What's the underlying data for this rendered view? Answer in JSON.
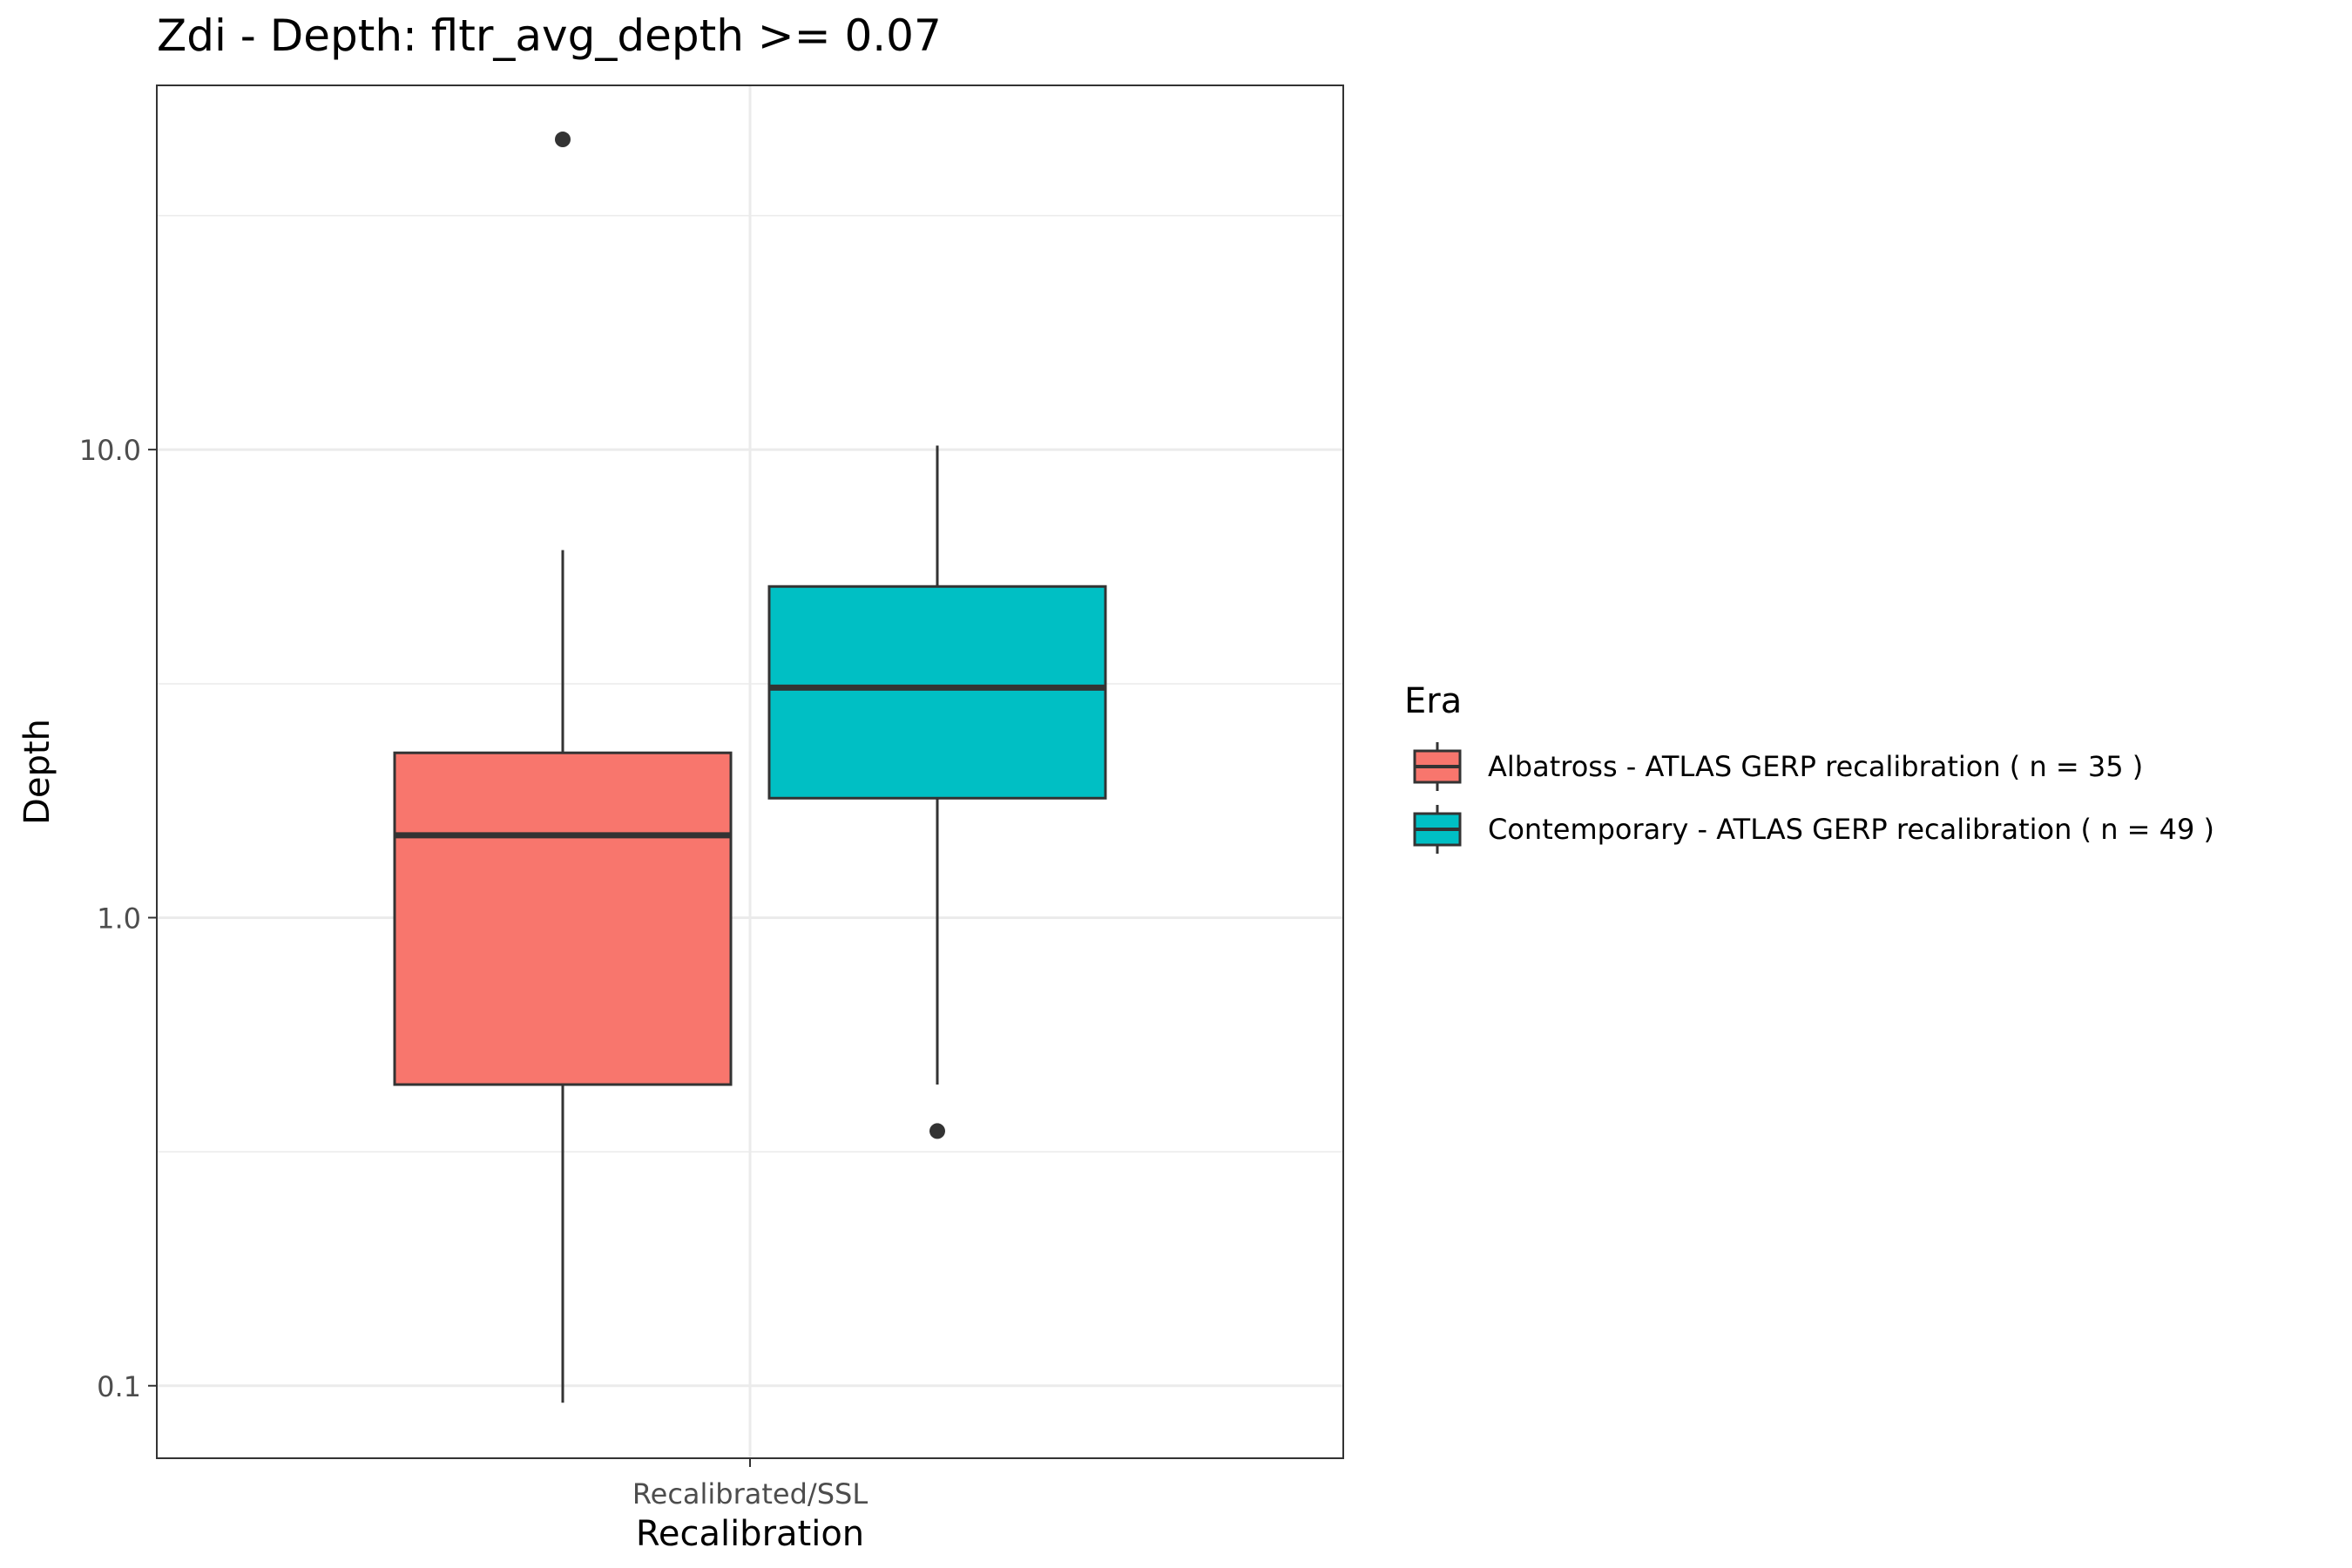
{
  "chart_data": {
    "type": "boxplot",
    "title": "Zdi - Depth: fltr_avg_depth >=  0.07",
    "xlabel": "Recalibration",
    "ylabel": "Depth",
    "y_scale": "log10",
    "ylim": [
      0.07,
      60
    ],
    "y_ticks": [
      {
        "value": 0.1,
        "label": "0.1"
      },
      {
        "value": 1,
        "label": "1.0"
      },
      {
        "value": 10,
        "label": "10.0"
      }
    ],
    "y_minor_grid": [
      0.316,
      3.16,
      31.6
    ],
    "categories": [
      "Recalibrated/SSL"
    ],
    "grid": true,
    "legend": {
      "title": "Era",
      "position": "right"
    },
    "series": [
      {
        "name": "Albatross - ATLAS GERP recalibration ( n = 35 )",
        "color": "#F8766D",
        "whisker_low": 0.092,
        "q1": 0.44,
        "median": 1.5,
        "q3": 2.25,
        "whisker_high": 6.1,
        "outliers": [
          46
        ]
      },
      {
        "name": "Contemporary - ATLAS GERP recalibration ( n = 49 )",
        "color": "#00BFC4",
        "whisker_low": 0.44,
        "q1": 1.8,
        "median": 3.1,
        "q3": 5.1,
        "whisker_high": 10.2,
        "outliers": [
          0.35
        ]
      }
    ]
  }
}
